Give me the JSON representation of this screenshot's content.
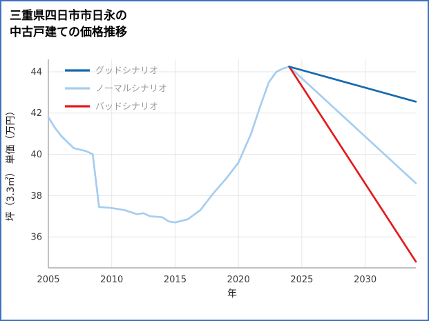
{
  "page": {
    "title_line1": "三重県四日市市日永の",
    "title_line2": "中古戸建ての価格推移"
  },
  "chart_data": {
    "type": "line",
    "title": "三重県四日市市日永の中古戸建ての価格推移",
    "xlabel": "年",
    "ylabel": "坪（3.3㎡） 単価（万円）",
    "xlim": [
      2005,
      2034
    ],
    "ylim": [
      34.5,
      44.6
    ],
    "xticks": [
      2005,
      2010,
      2015,
      2020,
      2025,
      2030
    ],
    "yticks": [
      36,
      38,
      40,
      42,
      44
    ],
    "grid": true,
    "legend_position": "upper-left",
    "legend": [
      {
        "label": "グッドシナリオ",
        "color": "#1769ac"
      },
      {
        "label": "ノーマルシナリオ",
        "color": "#a5cdf0"
      },
      {
        "label": "バッドシナリオ",
        "color": "#e41a1c"
      }
    ],
    "series": [
      {
        "name": "ノーマルシナリオ",
        "color": "#a5cdf0",
        "x": [
          2005,
          2005.5,
          2006,
          2007,
          2008,
          2008.5,
          2009,
          2010,
          2011,
          2012,
          2012.5,
          2013,
          2014,
          2014.5,
          2015,
          2016,
          2017,
          2018,
          2019,
          2020,
          2021,
          2021.7,
          2022.4,
          2023,
          2023.5,
          2024,
          2034
        ],
        "y": [
          41.8,
          41.3,
          40.9,
          40.3,
          40.15,
          40.0,
          37.45,
          37.4,
          37.3,
          37.1,
          37.15,
          37.0,
          36.95,
          36.75,
          36.7,
          36.85,
          37.3,
          38.1,
          38.8,
          39.6,
          41.0,
          42.3,
          43.5,
          44.0,
          44.15,
          44.25,
          38.6
        ]
      },
      {
        "name": "バッドシナリオ",
        "color": "#e41a1c",
        "x": [
          2024,
          2034
        ],
        "y": [
          44.25,
          34.8
        ]
      },
      {
        "name": "グッドシナリオ",
        "color": "#1769ac",
        "x": [
          2024,
          2034
        ],
        "y": [
          44.25,
          42.55
        ]
      }
    ]
  }
}
